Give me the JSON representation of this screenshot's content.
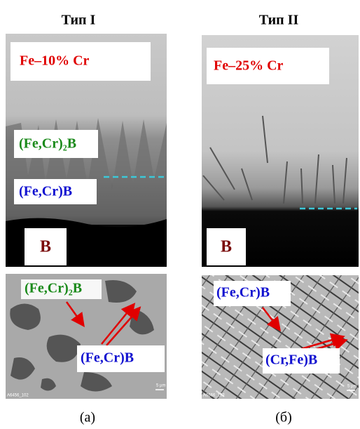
{
  "columns": [
    {
      "title": "Тип I",
      "top_image": {
        "composition": "Fe–10% Cr",
        "phase_labels": [
          "(Fe,Cr)₂B",
          "(Fe,Cr)B",
          "B"
        ]
      },
      "bottom_image": {
        "phase_labels": [
          "(Fe,Cr)₂B",
          "(Fe,Cr)B"
        ],
        "scale_bar": "5 µm",
        "image_id": "A6456_102"
      },
      "caption": "(a)"
    },
    {
      "title": "Тип II",
      "top_image": {
        "composition": "Fe–25% Cr",
        "phase_labels": [
          "B"
        ]
      },
      "bottom_image": {
        "phase_labels": [
          "(Fe,Cr)B",
          "(Cr,Fe)B"
        ],
        "scale_bar": "5 µm",
        "image_id": "A6666_102"
      },
      "caption": "(б)"
    }
  ]
}
